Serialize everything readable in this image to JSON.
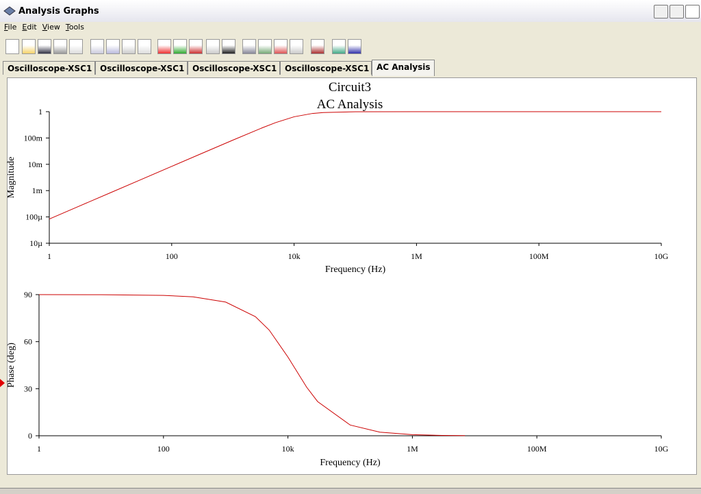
{
  "window": {
    "title": "Analysis Graphs"
  },
  "menu": [
    "File",
    "Edit",
    "View",
    "Tools"
  ],
  "tabs": [
    "Oscilloscope-XSC1",
    "Oscilloscope-XSC1",
    "Oscilloscope-XSC1",
    "Oscilloscope-XSC1",
    "AC Analysis"
  ],
  "active_tab": 4,
  "chart_data": [
    {
      "type": "line",
      "title": "Circuit3",
      "subtitle": "AC Analysis",
      "xlabel": "Frequency (Hz)",
      "ylabel": "Magnitude",
      "xscale": "log",
      "yscale": "log",
      "xlim": [
        1,
        10000000000
      ],
      "ylim": [
        1e-05,
        1
      ],
      "xticks": [
        1,
        100,
        {
          "value": 10000,
          "label": "10k"
        },
        {
          "value": 1000000,
          "label": "1M"
        },
        {
          "value": 100000000,
          "label": "100M"
        },
        {
          "value": 10000000000,
          "label": "10G"
        }
      ],
      "yticks": [
        {
          "value": 1e-05,
          "label": "10µ"
        },
        {
          "value": 0.0001,
          "label": "100µ"
        },
        {
          "value": 0.001,
          "label": "1m"
        },
        {
          "value": 0.01,
          "label": "10m"
        },
        {
          "value": 0.1,
          "label": "100m"
        },
        1
      ],
      "x": [
        1,
        3,
        10,
        30,
        100,
        300,
        1000,
        3000,
        5000,
        10000,
        20000,
        30000,
        100000,
        1000000,
        100000000,
        10000000000
      ],
      "series": [
        {
          "name": "Magnitude",
          "color": "#cc0000",
          "values": [
            8.33e-05,
            0.00025,
            0.000833,
            0.0025,
            0.00833,
            0.025,
            0.083,
            0.2425,
            0.385,
            0.64,
            0.857,
            0.928,
            0.993,
            1,
            1,
            1
          ]
        }
      ]
    },
    {
      "type": "line",
      "xlabel": "Frequency (Hz)",
      "ylabel": "Phase (deg)",
      "xscale": "log",
      "xlim": [
        1,
        10000000000
      ],
      "ylim": [
        0,
        90
      ],
      "xticks": [
        1,
        100,
        {
          "value": 10000,
          "label": "10k"
        },
        {
          "value": 1000000,
          "label": "1M"
        },
        {
          "value": 100000000,
          "label": "100M"
        },
        {
          "value": 10000000000,
          "label": "10G"
        }
      ],
      "yticks": [
        0,
        30,
        60,
        90
      ],
      "x": [
        1,
        10,
        100,
        300,
        1000,
        3000,
        5000,
        10000,
        20000,
        30000,
        100000,
        300000,
        1000000,
        3000000,
        7000000
      ],
      "series": [
        {
          "name": "Phase",
          "color": "#cc0000",
          "values": [
            90,
            89.95,
            89.52,
            88.57,
            85.24,
            75.96,
            67.38,
            50.19,
            30.96,
            21.8,
            6.84,
            2.29,
            0.69,
            0.23,
            0.1
          ]
        }
      ]
    }
  ]
}
